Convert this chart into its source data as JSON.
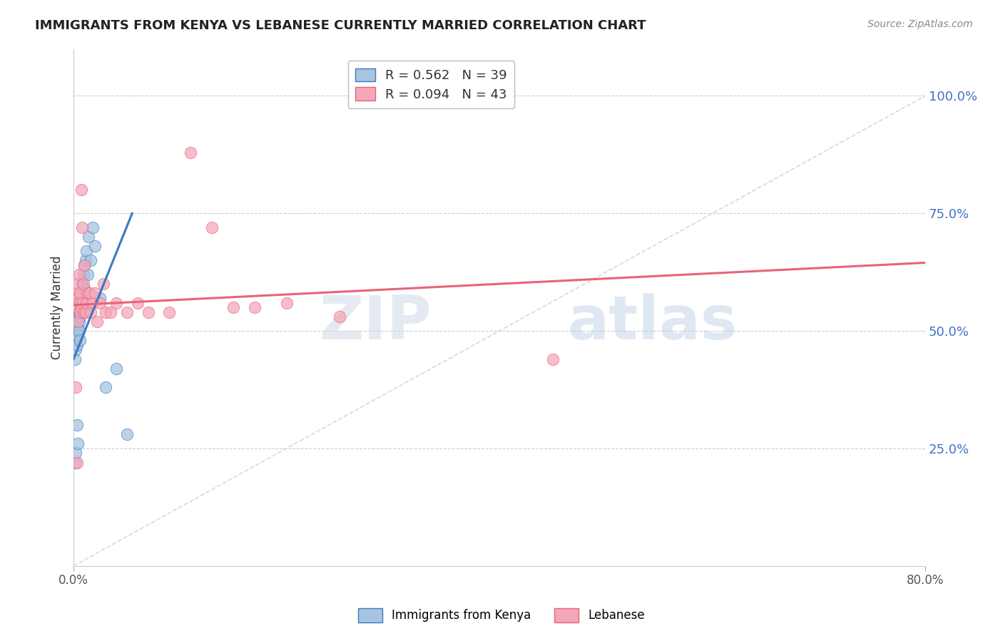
{
  "title": "IMMIGRANTS FROM KENYA VS LEBANESE CURRENTLY MARRIED CORRELATION CHART",
  "source": "Source: ZipAtlas.com",
  "ylabel": "Currently Married",
  "ytick_labels": [
    "100.0%",
    "75.0%",
    "50.0%",
    "25.0%"
  ],
  "ytick_values": [
    1.0,
    0.75,
    0.5,
    0.25
  ],
  "kenya_R": 0.562,
  "kenya_N": 39,
  "lebanese_R": 0.094,
  "lebanese_N": 43,
  "xlim": [
    0.0,
    0.8
  ],
  "ylim": [
    0.0,
    1.1
  ],
  "background_color": "#ffffff",
  "kenya_color": "#a8c4e0",
  "lebanese_color": "#f4a7b9",
  "kenya_line_color": "#3a7abf",
  "lebanese_line_color": "#e8637a",
  "diagonal_color": "#c8c8c8",
  "watermark_zip": "ZIP",
  "watermark_atlas": "atlas",
  "kenya_x": [
    0.001,
    0.002,
    0.002,
    0.003,
    0.003,
    0.003,
    0.004,
    0.004,
    0.004,
    0.004,
    0.005,
    0.005,
    0.005,
    0.006,
    0.006,
    0.006,
    0.007,
    0.007,
    0.008,
    0.008,
    0.009,
    0.009,
    0.01,
    0.01,
    0.011,
    0.012,
    0.013,
    0.014,
    0.016,
    0.018,
    0.02,
    0.025,
    0.03,
    0.04,
    0.05,
    0.001,
    0.002,
    0.003,
    0.004
  ],
  "kenya_y": [
    0.44,
    0.46,
    0.48,
    0.5,
    0.52,
    0.47,
    0.51,
    0.53,
    0.49,
    0.55,
    0.52,
    0.54,
    0.5,
    0.53,
    0.56,
    0.48,
    0.57,
    0.54,
    0.6,
    0.58,
    0.62,
    0.55,
    0.64,
    0.59,
    0.65,
    0.67,
    0.62,
    0.7,
    0.65,
    0.72,
    0.68,
    0.57,
    0.38,
    0.42,
    0.28,
    0.22,
    0.24,
    0.3,
    0.26
  ],
  "lebanese_x": [
    0.001,
    0.002,
    0.003,
    0.003,
    0.004,
    0.004,
    0.005,
    0.005,
    0.006,
    0.006,
    0.007,
    0.007,
    0.008,
    0.008,
    0.009,
    0.01,
    0.01,
    0.011,
    0.012,
    0.013,
    0.015,
    0.016,
    0.018,
    0.02,
    0.022,
    0.025,
    0.028,
    0.03,
    0.035,
    0.04,
    0.05,
    0.06,
    0.07,
    0.09,
    0.11,
    0.13,
    0.15,
    0.17,
    0.2,
    0.25,
    0.002,
    0.003,
    0.45
  ],
  "lebanese_y": [
    0.57,
    0.58,
    0.55,
    0.6,
    0.52,
    0.57,
    0.56,
    0.62,
    0.54,
    0.58,
    0.55,
    0.8,
    0.56,
    0.72,
    0.6,
    0.54,
    0.64,
    0.54,
    0.56,
    0.58,
    0.58,
    0.54,
    0.56,
    0.58,
    0.52,
    0.56,
    0.6,
    0.54,
    0.54,
    0.56,
    0.54,
    0.56,
    0.54,
    0.54,
    0.88,
    0.72,
    0.55,
    0.55,
    0.56,
    0.53,
    0.38,
    0.22,
    0.44
  ],
  "kenya_trend_x0": 0.0,
  "kenya_trend_y0": 0.44,
  "kenya_trend_x1": 0.055,
  "kenya_trend_y1": 0.75,
  "lebanese_trend_x0": 0.0,
  "lebanese_trend_y0": 0.555,
  "lebanese_trend_x1": 0.8,
  "lebanese_trend_y1": 0.645
}
